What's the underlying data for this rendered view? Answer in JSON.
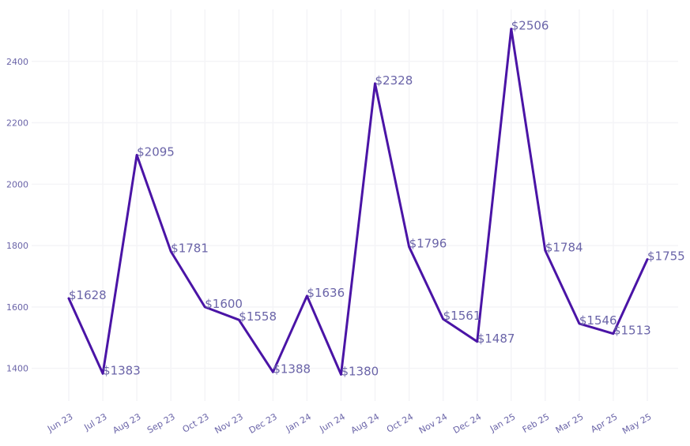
{
  "chart_data": {
    "type": "line",
    "title": "",
    "xlabel": "",
    "ylabel": "",
    "categories": [
      "Jun 23",
      "Jul 23",
      "Aug 23",
      "Sep 23",
      "Oct 23",
      "Nov 23",
      "Dec 23",
      "Jan 24",
      "Jun 24",
      "Aug 24",
      "Oct 24",
      "Nov 24",
      "Dec 24",
      "Jan 25",
      "Feb 25",
      "Mar 25",
      "Apr 25",
      "May 25"
    ],
    "values": [
      1628,
      1383,
      2095,
      1781,
      1600,
      1558,
      1388,
      1636,
      1380,
      2328,
      1796,
      1561,
      1487,
      2506,
      1784,
      1546,
      1513,
      1755
    ],
    "data_labels": [
      "$1628",
      "$1383",
      "$2095",
      "$1781",
      "$1600",
      "$1558",
      "$1388",
      "$1636",
      "$1380",
      "$2328",
      "$1796",
      "$1561",
      "$1487",
      "$2506",
      "$1784",
      "$1546",
      "$1513",
      "$1755"
    ],
    "yticks": [
      1400,
      1600,
      1800,
      2000,
      2200,
      2400
    ],
    "ylim": [
      1340,
      2510
    ],
    "grid": true,
    "legend": "none",
    "colors": {
      "line": "#4a14a6",
      "text": "#6a64a8",
      "grid": "#f4f4f7"
    }
  }
}
